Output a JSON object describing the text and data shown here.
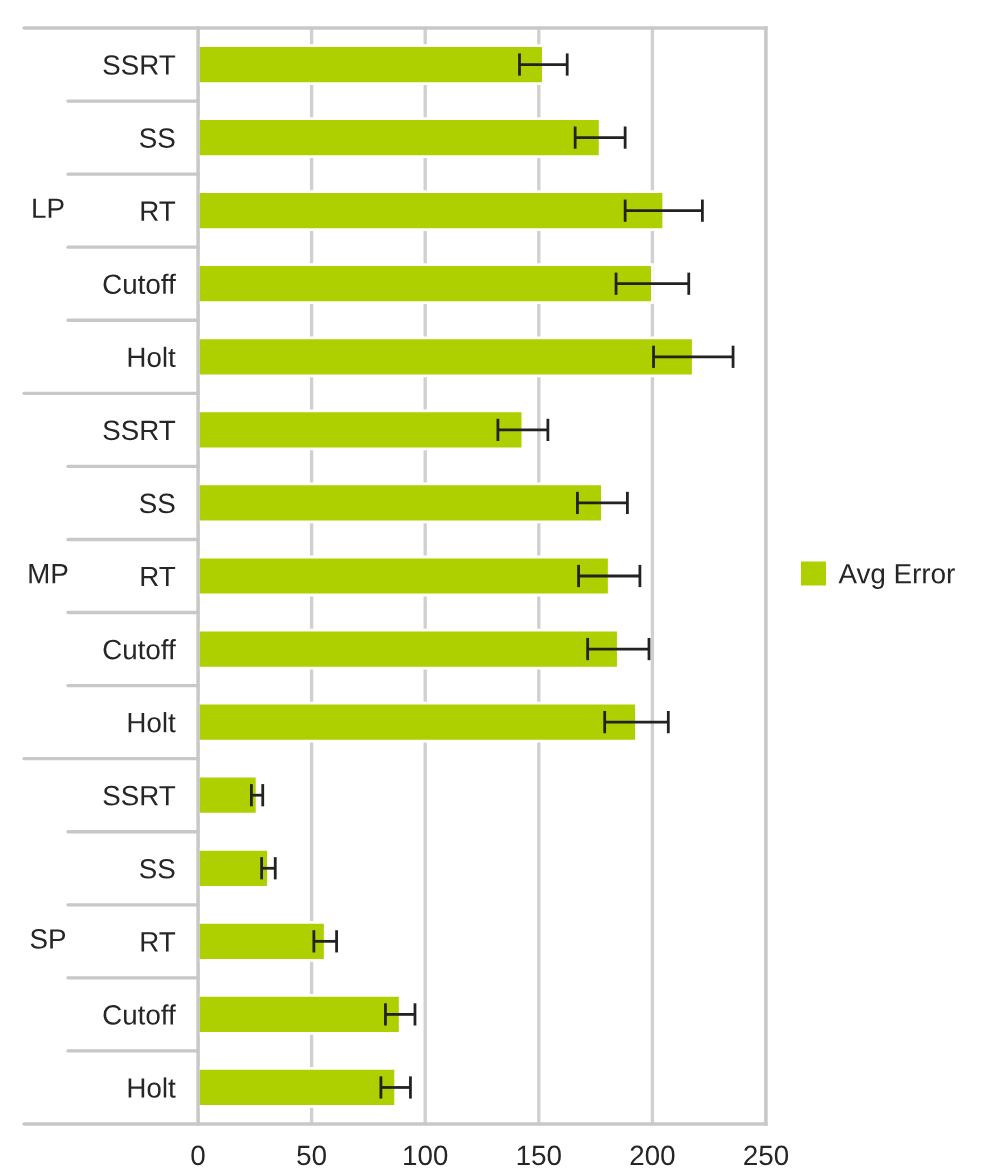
{
  "chart_data": {
    "type": "bar",
    "orientation": "horizontal",
    "categories": [
      "SSRT",
      "SS",
      "RT",
      "Cutoff",
      "Holt",
      "SSRT",
      "SS",
      "RT",
      "Cutoff",
      "Holt",
      "SSRT",
      "SS",
      "RT",
      "Cutoff",
      "Holt"
    ],
    "series": [
      {
        "name": "Avg Error",
        "color": "#aecf00",
        "values": [
          152,
          177,
          205,
          200,
          218,
          143,
          178,
          181,
          185,
          193,
          26,
          31,
          56,
          89,
          87
        ],
        "errors": [
          10.5,
          11,
          17,
          16,
          17.5,
          11,
          11,
          13.5,
          13.5,
          14,
          2.5,
          3,
          5,
          6.5,
          6.5
        ]
      }
    ],
    "annotations": [
      "LP",
      "MP",
      "SP"
    ],
    "xlim": [
      0,
      250
    ],
    "xticks": [
      0,
      50,
      100,
      150,
      200,
      250
    ],
    "grid": "x",
    "legend": "right"
  }
}
